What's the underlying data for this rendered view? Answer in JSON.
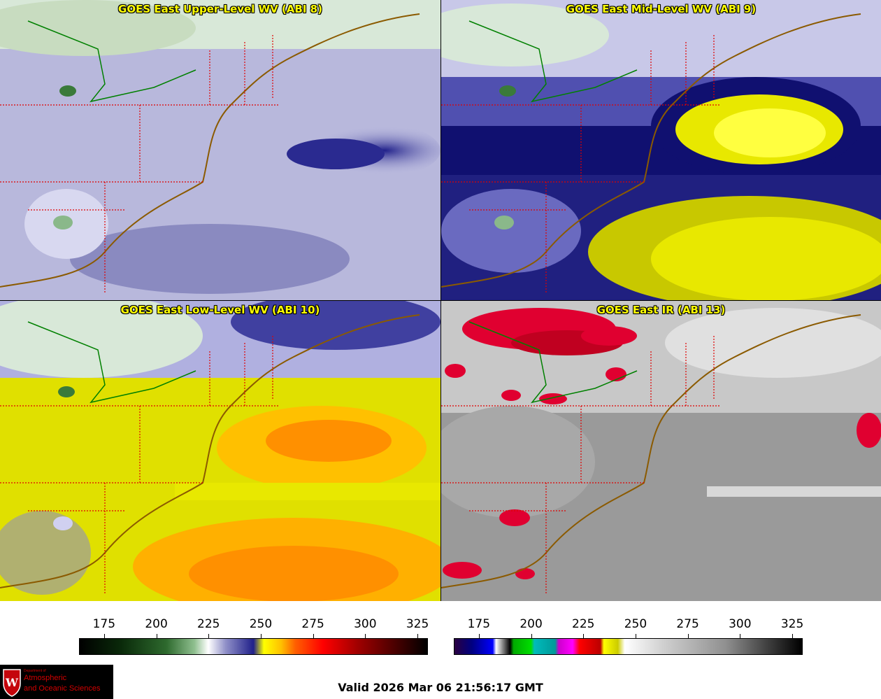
{
  "panels": [
    {
      "id": "p1",
      "title": "GOES East Upper-Level WV (ABI 8)",
      "palette": "wv-upper"
    },
    {
      "id": "p2",
      "title": "GOES East Mid-Level WV (ABI 9)",
      "palette": "wv-mid"
    },
    {
      "id": "p3",
      "title": "GOES East Low-Level WV (ABI 10)",
      "palette": "wv-low"
    },
    {
      "id": "p4",
      "title": "GOES East IR (ABI 13)",
      "palette": "ir"
    }
  ],
  "colorbars": [
    {
      "name": "wv-colorbar",
      "range": [
        163,
        330
      ],
      "ticks": [
        "175",
        "200",
        "225",
        "250",
        "275",
        "300",
        "325"
      ]
    },
    {
      "name": "ir-colorbar",
      "range": [
        163,
        330
      ],
      "ticks": [
        "175",
        "200",
        "225",
        "250",
        "275",
        "300",
        "325"
      ]
    }
  ],
  "valid_time": "Valid 2026 Mar 06 21:56:17 GMT",
  "logo": {
    "line_small": "Department of",
    "line1": "Atmospheric",
    "line2": "and Oceanic Sciences",
    "emblem": "uw-crest-icon"
  },
  "colors": {
    "state_border": "#e00000",
    "coast_border": "#8b5a00",
    "wv_base": "#b8b8e0",
    "wv_dry": "#20208a",
    "wv_very_dry": "#ffff00",
    "ir_base": "#a8a8a8",
    "cold_top": "#e00020"
  }
}
